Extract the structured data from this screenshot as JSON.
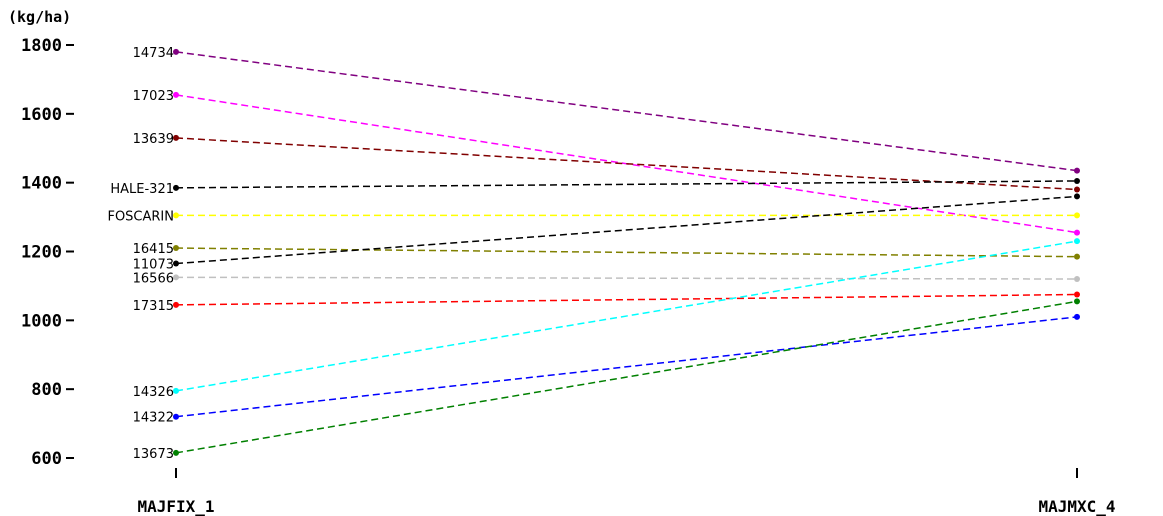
{
  "chart_data": {
    "type": "line",
    "ylabel": "(kg/ha)",
    "categories": [
      "MAJFIX_1",
      "MAJMXC_4"
    ],
    "ylim": [
      600,
      1800
    ],
    "yticks": [
      600,
      800,
      1000,
      1200,
      1400,
      1600,
      1800
    ],
    "grid": false,
    "legend": "none",
    "series": [
      {
        "name": "14734",
        "values": [
          1780,
          1435
        ],
        "color": "#800080"
      },
      {
        "name": "17023",
        "values": [
          1655,
          1255
        ],
        "color": "#ff00ff"
      },
      {
        "name": "13639",
        "values": [
          1530,
          1380
        ],
        "color": "#800000"
      },
      {
        "name": "HALE-321",
        "values": [
          1385,
          1405
        ],
        "color": "#000000"
      },
      {
        "name": "FOSCARIN",
        "values": [
          1305,
          1305
        ],
        "color": "#ffff00"
      },
      {
        "name": "16415",
        "values": [
          1210,
          1185
        ],
        "color": "#808000"
      },
      {
        "name": "11073",
        "values": [
          1165,
          1360
        ],
        "color": "#000000"
      },
      {
        "name": "16566",
        "values": [
          1125,
          1120
        ],
        "color": "#c0c0c0"
      },
      {
        "name": "17315",
        "values": [
          1045,
          1075
        ],
        "color": "#ff0000"
      },
      {
        "name": "14326",
        "values": [
          795,
          1230
        ],
        "color": "#00ffff"
      },
      {
        "name": "14322",
        "values": [
          720,
          1010
        ],
        "color": "#0000ff"
      },
      {
        "name": "13673",
        "values": [
          615,
          1055
        ],
        "color": "#008000"
      }
    ]
  }
}
